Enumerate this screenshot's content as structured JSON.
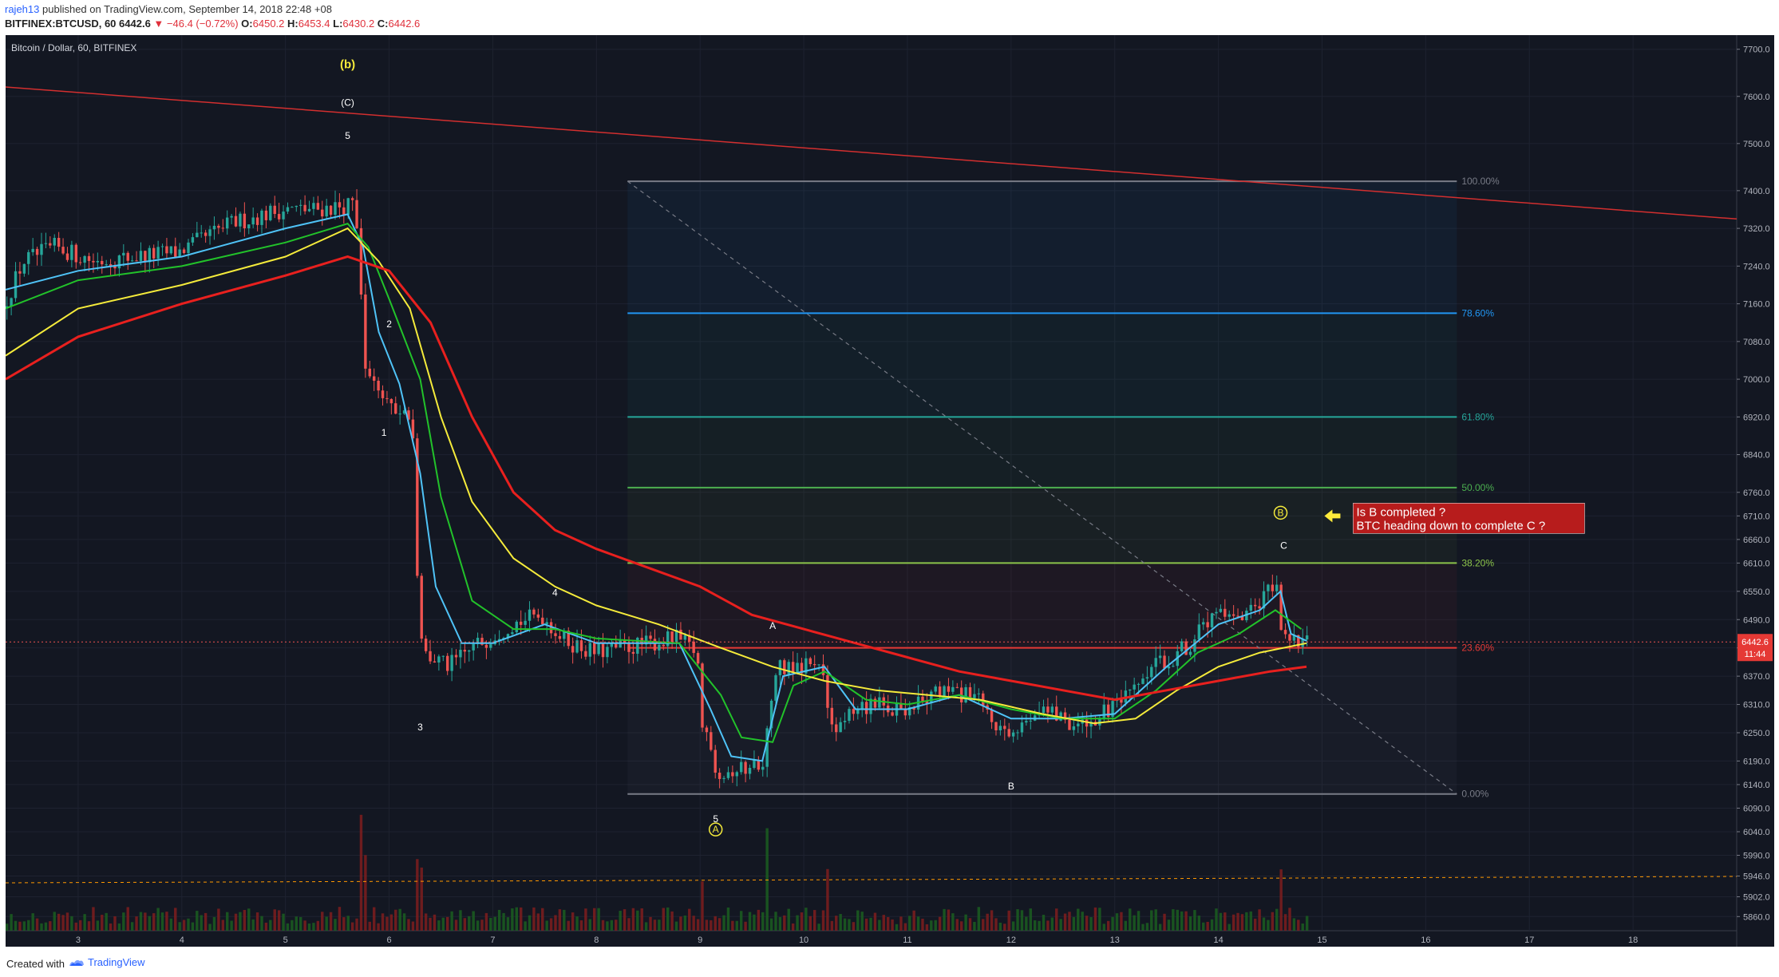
{
  "header": {
    "username": "rajeh13",
    "published": "published on TradingView.com, September 14, 2018 22:48 +08",
    "symbol": "BITFINEX:BTCUSD, 60",
    "last": "6442.6",
    "change": "−46.4 (−0.72%)",
    "o_label": "O:",
    "o": "6450.2",
    "h_label": "H:",
    "h": "6453.4",
    "l_label": "L:",
    "l": "6430.2",
    "c_label": "C:",
    "c": "6442.6"
  },
  "chart_title": "Bitcoin / Dollar, 60, BITFINEX",
  "footer": {
    "created": "Created with",
    "brand": "TradingView"
  },
  "colors": {
    "background": "#131722",
    "grid": "#1e2230",
    "up": "#26a69a",
    "down": "#ef5350",
    "ema_fast": "#4fc3f7",
    "ema_mid": "#22c22a",
    "ema_slow": "#f5eb3b",
    "ema_long": "#e8201e",
    "trendline": "#d32f2f",
    "annotation": "#b71c1c"
  },
  "chart_data": {
    "type": "candlestick",
    "ylim": [
      5830,
      7730
    ],
    "y_ticks": [
      "7700.0",
      "7600.0",
      "7500.0",
      "7400.0",
      "7320.0",
      "7240.0",
      "7160.0",
      "7080.0",
      "7000.0",
      "6920.0",
      "6840.0",
      "6760.0",
      "6710.0",
      "6660.0",
      "6610.0",
      "6550.0",
      "6490.0",
      "6430.0",
      "6370.0",
      "6310.0",
      "6250.0",
      "6190.0",
      "6140.0",
      "6090.0",
      "6040.0",
      "5990.0",
      "5946.0",
      "5902.0",
      "5860.0"
    ],
    "x_ticks": [
      "3",
      "4",
      "5",
      "6",
      "7",
      "8",
      "9",
      "10",
      "11",
      "12",
      "13",
      "14",
      "15",
      "16",
      "17",
      "18"
    ],
    "x_range": [
      2.3,
      19
    ],
    "last_price": "6442.6",
    "countdown": "11:44",
    "price_anchors": [
      [
        2.3,
        7150
      ],
      [
        2.5,
        7250
      ],
      [
        2.8,
        7280
      ],
      [
        3.2,
        7250
      ],
      [
        3.6,
        7260
      ],
      [
        4,
        7270
      ],
      [
        4.5,
        7330
      ],
      [
        5,
        7360
      ],
      [
        5.3,
        7360
      ],
      [
        5.7,
        7370
      ],
      [
        5.75,
        7200
      ],
      [
        5.8,
        7020
      ],
      [
        5.9,
        6990
      ],
      [
        6.1,
        6940
      ],
      [
        6.25,
        6910
      ],
      [
        6.3,
        6580
      ],
      [
        6.35,
        6420
      ],
      [
        6.6,
        6390
      ],
      [
        6.9,
        6440
      ],
      [
        7.2,
        6480
      ],
      [
        7.5,
        6500
      ],
      [
        7.7,
        6450
      ],
      [
        8,
        6420
      ],
      [
        8.3,
        6430
      ],
      [
        8.8,
        6450
      ],
      [
        9,
        6420
      ],
      [
        9.05,
        6260
      ],
      [
        9.2,
        6170
      ],
      [
        9.5,
        6175
      ],
      [
        9.65,
        6200
      ],
      [
        9.75,
        6390
      ],
      [
        10.2,
        6400
      ],
      [
        10.3,
        6250
      ],
      [
        10.6,
        6310
      ],
      [
        11,
        6300
      ],
      [
        11.4,
        6340
      ],
      [
        11.7,
        6320
      ],
      [
        12,
        6230
      ],
      [
        12.3,
        6310
      ],
      [
        12.7,
        6260
      ],
      [
        13,
        6300
      ],
      [
        13.2,
        6330
      ],
      [
        13.4,
        6390
      ],
      [
        13.6,
        6410
      ],
      [
        13.8,
        6450
      ],
      [
        14,
        6500
      ],
      [
        14.2,
        6480
      ],
      [
        14.4,
        6510
      ],
      [
        14.5,
        6550
      ],
      [
        14.6,
        6550
      ],
      [
        14.65,
        6440
      ],
      [
        14.8,
        6440
      ],
      [
        14.85,
        6442
      ]
    ],
    "moving_averages": [
      {
        "color": "#4fc3f7",
        "points": [
          [
            2.3,
            7190
          ],
          [
            3,
            7230
          ],
          [
            4,
            7260
          ],
          [
            5,
            7320
          ],
          [
            5.6,
            7350
          ],
          [
            5.75,
            7280
          ],
          [
            5.9,
            7100
          ],
          [
            6.1,
            6990
          ],
          [
            6.3,
            6800
          ],
          [
            6.45,
            6560
          ],
          [
            6.7,
            6440
          ],
          [
            7,
            6440
          ],
          [
            7.5,
            6480
          ],
          [
            8,
            6440
          ],
          [
            8.8,
            6440
          ],
          [
            9.1,
            6300
          ],
          [
            9.3,
            6200
          ],
          [
            9.6,
            6190
          ],
          [
            9.8,
            6370
          ],
          [
            10.2,
            6390
          ],
          [
            10.5,
            6300
          ],
          [
            11,
            6300
          ],
          [
            11.5,
            6330
          ],
          [
            12,
            6280
          ],
          [
            12.5,
            6280
          ],
          [
            13,
            6290
          ],
          [
            13.5,
            6390
          ],
          [
            14,
            6480
          ],
          [
            14.4,
            6510
          ],
          [
            14.6,
            6550
          ],
          [
            14.7,
            6460
          ],
          [
            14.85,
            6445
          ]
        ]
      },
      {
        "color": "#22c22a",
        "points": [
          [
            2.3,
            7150
          ],
          [
            3,
            7210
          ],
          [
            4,
            7240
          ],
          [
            5,
            7290
          ],
          [
            5.6,
            7330
          ],
          [
            5.8,
            7280
          ],
          [
            6,
            7170
          ],
          [
            6.3,
            7000
          ],
          [
            6.5,
            6750
          ],
          [
            6.8,
            6530
          ],
          [
            7.2,
            6470
          ],
          [
            7.6,
            6470
          ],
          [
            8,
            6450
          ],
          [
            8.8,
            6440
          ],
          [
            9.2,
            6330
          ],
          [
            9.4,
            6240
          ],
          [
            9.7,
            6230
          ],
          [
            9.9,
            6350
          ],
          [
            10.2,
            6380
          ],
          [
            10.6,
            6320
          ],
          [
            11,
            6310
          ],
          [
            11.5,
            6330
          ],
          [
            12,
            6300
          ],
          [
            12.5,
            6280
          ],
          [
            13,
            6280
          ],
          [
            13.4,
            6340
          ],
          [
            13.8,
            6420
          ],
          [
            14.2,
            6460
          ],
          [
            14.55,
            6510
          ],
          [
            14.8,
            6470
          ]
        ]
      },
      {
        "color": "#f5eb3b",
        "points": [
          [
            2.3,
            7050
          ],
          [
            3,
            7150
          ],
          [
            4,
            7200
          ],
          [
            5,
            7260
          ],
          [
            5.6,
            7320
          ],
          [
            5.9,
            7250
          ],
          [
            6.2,
            7150
          ],
          [
            6.5,
            6920
          ],
          [
            6.8,
            6740
          ],
          [
            7.2,
            6620
          ],
          [
            7.6,
            6560
          ],
          [
            8,
            6520
          ],
          [
            8.6,
            6480
          ],
          [
            9.2,
            6430
          ],
          [
            9.7,
            6390
          ],
          [
            10.2,
            6360
          ],
          [
            10.7,
            6340
          ],
          [
            11.2,
            6330
          ],
          [
            11.7,
            6320
          ],
          [
            12.3,
            6290
          ],
          [
            12.8,
            6270
          ],
          [
            13.2,
            6280
          ],
          [
            13.6,
            6340
          ],
          [
            14,
            6390
          ],
          [
            14.4,
            6420
          ],
          [
            14.85,
            6440
          ]
        ]
      },
      {
        "color": "#e8201e",
        "points": [
          [
            2.3,
            7000
          ],
          [
            3,
            7090
          ],
          [
            4,
            7160
          ],
          [
            5,
            7220
          ],
          [
            5.6,
            7260
          ],
          [
            6,
            7230
          ],
          [
            6.4,
            7120
          ],
          [
            6.8,
            6920
          ],
          [
            7.2,
            6760
          ],
          [
            7.6,
            6680
          ],
          [
            8,
            6640
          ],
          [
            8.5,
            6600
          ],
          [
            9,
            6560
          ],
          [
            9.5,
            6500
          ],
          [
            10,
            6470
          ],
          [
            10.5,
            6440
          ],
          [
            11,
            6410
          ],
          [
            11.5,
            6380
          ],
          [
            12,
            6360
          ],
          [
            12.5,
            6340
          ],
          [
            13,
            6320
          ],
          [
            13.5,
            6340
          ],
          [
            14,
            6360
          ],
          [
            14.5,
            6380
          ],
          [
            14.85,
            6390
          ]
        ]
      }
    ],
    "trendline": {
      "from": [
        2.3,
        7620
      ],
      "to": [
        19,
        7340
      ]
    },
    "fibonacci": {
      "x_start": 8.3,
      "x_end": 16.3,
      "levels": [
        {
          "label": "100.00%",
          "price": 7420,
          "color": "#787b86"
        },
        {
          "label": "78.60%",
          "price": 7140,
          "color": "#2196f3"
        },
        {
          "label": "61.80%",
          "price": 6920,
          "color": "#26a69a"
        },
        {
          "label": "50.00%",
          "price": 6770,
          "color": "#4caf50"
        },
        {
          "label": "38.20%",
          "price": 6610,
          "color": "#8bc34a"
        },
        {
          "label": "23.60%",
          "price": 6430,
          "color": "#e53935"
        },
        {
          "label": "0.00%",
          "price": 6120,
          "color": "#787b86"
        }
      ]
    },
    "wave_labels": [
      {
        "text": "(b)",
        "x": 5.6,
        "price": 7660,
        "color": "#f5eb3b",
        "circle": false,
        "bold": true
      },
      {
        "text": "(C)",
        "x": 5.6,
        "price": 7580,
        "color": "#ffffff",
        "circle": false
      },
      {
        "text": "5",
        "x": 5.6,
        "price": 7510,
        "color": "#ffffff",
        "circle": false
      },
      {
        "text": "2",
        "x": 6.0,
        "price": 7110,
        "color": "#ffffff",
        "circle": false
      },
      {
        "text": "1",
        "x": 5.95,
        "price": 6880,
        "color": "#ffffff",
        "circle": false
      },
      {
        "text": "3",
        "x": 6.3,
        "price": 6255,
        "color": "#ffffff",
        "circle": false
      },
      {
        "text": "4",
        "x": 7.6,
        "price": 6540,
        "color": "#ffffff",
        "circle": false
      },
      {
        "text": "A",
        "x": 9.7,
        "price": 6470,
        "color": "#ffffff",
        "circle": false
      },
      {
        "text": "5",
        "x": 9.15,
        "price": 6060,
        "color": "#ffffff",
        "circle": false
      },
      {
        "text": "A",
        "x": 9.15,
        "price": 6038,
        "color": "#f5eb3b",
        "circle": true
      },
      {
        "text": "B",
        "x": 12.0,
        "price": 6130,
        "color": "#ffffff",
        "circle": false
      },
      {
        "text": "C",
        "x": 14.63,
        "price": 6640,
        "color": "#ffffff",
        "circle": false
      },
      {
        "text": "B",
        "x": 14.6,
        "price": 6710,
        "color": "#f5eb3b",
        "circle": true
      }
    ],
    "annotation": {
      "lines": [
        "Is B completed ?",
        "BTC heading down to complete C ?"
      ],
      "x": 15.3,
      "price": 6710
    }
  }
}
